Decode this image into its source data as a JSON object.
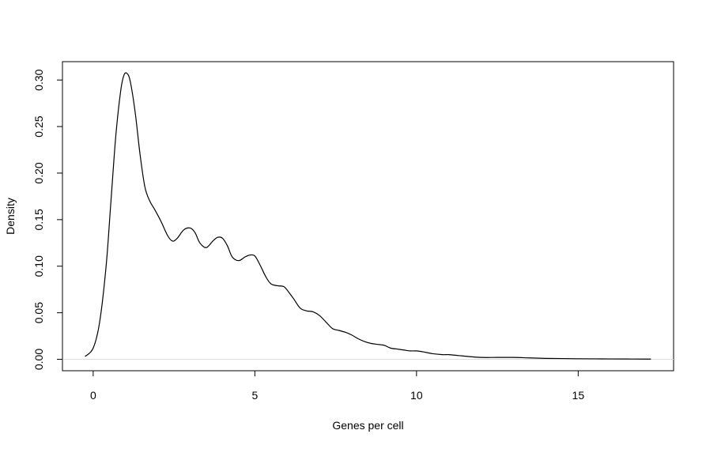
{
  "chart_data": {
    "type": "line",
    "title": "",
    "xlabel": "Genes per cell",
    "ylabel": "Density",
    "xlim": [
      -0.95,
      17.95
    ],
    "ylim": [
      -0.0123,
      0.3197
    ],
    "xticks": [
      0,
      5,
      10,
      15
    ],
    "xtick_labels": [
      "0",
      "5",
      "10",
      "15"
    ],
    "yticks": [
      0.0,
      0.05,
      0.1,
      0.15,
      0.2,
      0.25,
      0.3
    ],
    "ytick_labels": [
      "0.00",
      "0.05",
      "0.10",
      "0.15",
      "0.20",
      "0.25",
      "0.30"
    ],
    "grid": false,
    "zero_line": true,
    "line_color": "#000000",
    "zero_line_color": "#dddddd",
    "series": [
      {
        "x": [
          -0.25,
          0.0,
          0.2,
          0.4,
          0.55,
          0.7,
          0.85,
          0.95,
          1.05,
          1.15,
          1.3,
          1.45,
          1.6,
          1.75,
          1.9,
          2.1,
          2.3,
          2.45,
          2.6,
          2.8,
          3.0,
          3.15,
          3.3,
          3.5,
          3.7,
          3.85,
          4.0,
          4.15,
          4.3,
          4.5,
          4.7,
          4.85,
          5.0,
          5.15,
          5.35,
          5.5,
          5.7,
          5.9,
          6.05,
          6.2,
          6.4,
          6.6,
          6.8,
          7.0,
          7.2,
          7.4,
          7.6,
          7.8,
          8.0,
          8.2,
          8.4,
          8.6,
          8.8,
          9.0,
          9.2,
          9.4,
          9.6,
          9.8,
          10.0,
          10.2,
          10.5,
          10.8,
          11.0,
          11.3,
          11.6,
          12.0,
          12.5,
          13.0,
          13.5,
          14.0,
          14.5,
          15.0,
          15.5,
          16.0,
          16.5,
          17.0,
          17.25
        ],
        "y": [
          0.003,
          0.012,
          0.04,
          0.1,
          0.17,
          0.24,
          0.288,
          0.305,
          0.307,
          0.298,
          0.265,
          0.22,
          0.185,
          0.17,
          0.161,
          0.148,
          0.133,
          0.127,
          0.13,
          0.139,
          0.141,
          0.136,
          0.125,
          0.12,
          0.127,
          0.131,
          0.13,
          0.122,
          0.11,
          0.106,
          0.11,
          0.112,
          0.111,
          0.102,
          0.088,
          0.081,
          0.079,
          0.078,
          0.072,
          0.065,
          0.055,
          0.052,
          0.051,
          0.047,
          0.04,
          0.033,
          0.031,
          0.029,
          0.026,
          0.022,
          0.019,
          0.017,
          0.016,
          0.015,
          0.012,
          0.011,
          0.01,
          0.009,
          0.009,
          0.008,
          0.006,
          0.005,
          0.005,
          0.004,
          0.003,
          0.002,
          0.002,
          0.002,
          0.0015,
          0.001,
          0.0008,
          0.0006,
          0.0005,
          0.0004,
          0.0003,
          0.0002,
          0.0002
        ]
      }
    ]
  }
}
